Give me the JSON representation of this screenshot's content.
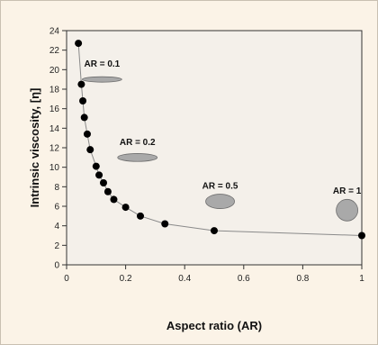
{
  "chart_data": {
    "type": "scatter",
    "title": "",
    "xlabel": "Aspect ratio (AR)",
    "ylabel": "Intrinsic viscosity, [η]",
    "xlim": [
      0,
      1
    ],
    "ylim": [
      0,
      24
    ],
    "x_ticks": [
      0,
      0.2,
      0.4,
      0.6,
      0.8,
      1
    ],
    "x_tick_labels": [
      "0",
      "0.2",
      "0.4",
      "0.6",
      "0.8",
      "1"
    ],
    "y_ticks": [
      0,
      2,
      4,
      6,
      8,
      10,
      12,
      14,
      16,
      18,
      20,
      22,
      24
    ],
    "y_tick_labels": [
      "0",
      "2",
      "4",
      "6",
      "8",
      "10",
      "12",
      "14",
      "16",
      "18",
      "20",
      "22",
      "24"
    ],
    "grid": false,
    "legend": "none",
    "series": [
      {
        "marker": "circle",
        "color": "#000000",
        "fit_line": true,
        "fit_line_color": "#8a8a8a",
        "x": [
          0.04,
          0.05,
          0.055,
          0.06,
          0.07,
          0.08,
          0.1,
          0.11,
          0.125,
          0.14,
          0.16,
          0.2,
          0.25,
          0.333,
          0.5,
          1.0
        ],
        "y": [
          22.7,
          18.5,
          16.8,
          15.1,
          13.4,
          11.8,
          10.1,
          9.2,
          8.4,
          7.5,
          6.7,
          5.9,
          5.0,
          4.2,
          3.5,
          3.0
        ]
      }
    ],
    "annotations": [
      {
        "text": "AR = 0.1",
        "x": 0.12,
        "y": 20.3,
        "shape": "ellipse",
        "shape_x": 0.12,
        "shape_y": 19.0,
        "aspect_ratio": 0.1
      },
      {
        "text": "AR = 0.2",
        "x": 0.24,
        "y": 12.3,
        "shape": "ellipse",
        "shape_x": 0.24,
        "shape_y": 11.0,
        "aspect_ratio": 0.2
      },
      {
        "text": "AR = 0.5",
        "x": 0.52,
        "y": 7.8,
        "shape": "ellipse",
        "shape_x": 0.52,
        "shape_y": 6.5,
        "aspect_ratio": 0.5
      },
      {
        "text": "AR = 1",
        "x": 0.95,
        "y": 7.3,
        "shape": "ellipse",
        "shape_x": 0.95,
        "shape_y": 5.6,
        "aspect_ratio": 1
      }
    ]
  }
}
